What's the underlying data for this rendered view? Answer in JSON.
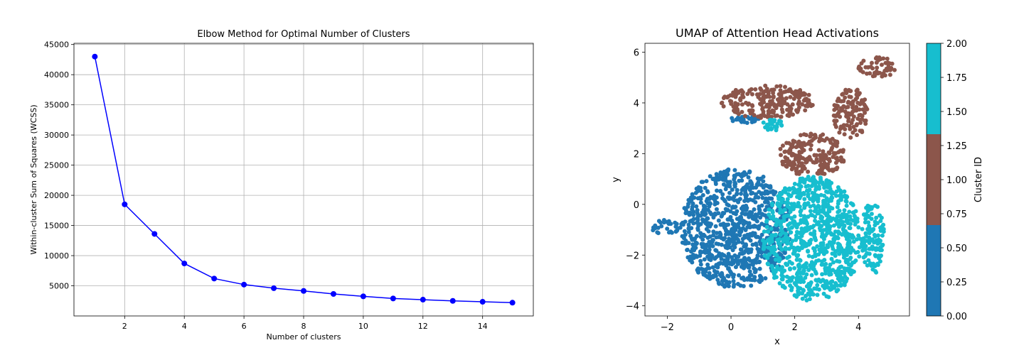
{
  "chart_data": [
    {
      "type": "line",
      "title": "Elbow Method for Optimal Number of Clusters",
      "xlabel": "Number of clusters",
      "ylabel": "Within-cluster Sum of Squares (WCSS)",
      "x": [
        1,
        2,
        3,
        4,
        5,
        6,
        7,
        8,
        9,
        10,
        11,
        12,
        13,
        14,
        15
      ],
      "values": [
        43000,
        18500,
        13600,
        8700,
        6200,
        5200,
        4600,
        4150,
        3650,
        3250,
        2900,
        2700,
        2500,
        2350,
        2200
      ],
      "xlim": [
        0.3,
        15.7
      ],
      "ylim": [
        0,
        45200
      ],
      "xticks": [
        2,
        4,
        6,
        8,
        10,
        12,
        14
      ],
      "yticks": [
        5000,
        10000,
        15000,
        20000,
        25000,
        30000,
        35000,
        40000,
        45000
      ],
      "grid": true,
      "color": "#0000ff",
      "marker": "circle"
    },
    {
      "type": "scatter",
      "title": "UMAP of Attention Head Activations",
      "xlabel": "x",
      "ylabel": "y",
      "xlim": [
        -2.7,
        5.6
      ],
      "ylim": [
        -4.4,
        6.35
      ],
      "xticks": [
        -2,
        0,
        2,
        4
      ],
      "yticks": [
        -4,
        -2,
        0,
        2,
        4,
        6
      ],
      "grid": false,
      "clusters": [
        {
          "id": 0,
          "color": "#1f77b4",
          "regions": [
            {
              "x": [
                -1.6,
                1.9
              ],
              "y": [
                -3.3,
                1.4
              ]
            },
            {
              "x": [
                -2.5,
                -1.6
              ],
              "y": [
                -1.2,
                -0.6
              ]
            },
            {
              "x": [
                0.0,
                0.9
              ],
              "y": [
                3.2,
                3.5
              ]
            }
          ]
        },
        {
          "id": 1,
          "color": "#8c564b",
          "regions": [
            {
              "x": [
                -0.3,
                2.6
              ],
              "y": [
                3.4,
                4.7
              ]
            },
            {
              "x": [
                4.0,
                5.2
              ],
              "y": [
                5.0,
                5.8
              ]
            },
            {
              "x": [
                1.5,
                3.6
              ],
              "y": [
                1.1,
                2.8
              ]
            },
            {
              "x": [
                3.2,
                4.3
              ],
              "y": [
                2.6,
                4.6
              ]
            }
          ]
        },
        {
          "id": 2,
          "color": "#17becf",
          "regions": [
            {
              "x": [
                1.0,
                4.1
              ],
              "y": [
                -3.8,
                1.1
              ]
            },
            {
              "x": [
                1.0,
                1.6
              ],
              "y": [
                2.9,
                3.4
              ]
            },
            {
              "x": [
                4.1,
                4.8
              ],
              "y": [
                -2.8,
                0.2
              ]
            }
          ]
        }
      ],
      "colorbar": {
        "label": "Cluster ID",
        "ticks": [
          "0.00",
          "0.25",
          "0.50",
          "0.75",
          "1.00",
          "1.25",
          "1.50",
          "1.75",
          "2.00"
        ],
        "range": [
          0,
          2
        ],
        "bands": [
          "#1f77b4",
          "#8c564b",
          "#17becf"
        ]
      }
    }
  ]
}
